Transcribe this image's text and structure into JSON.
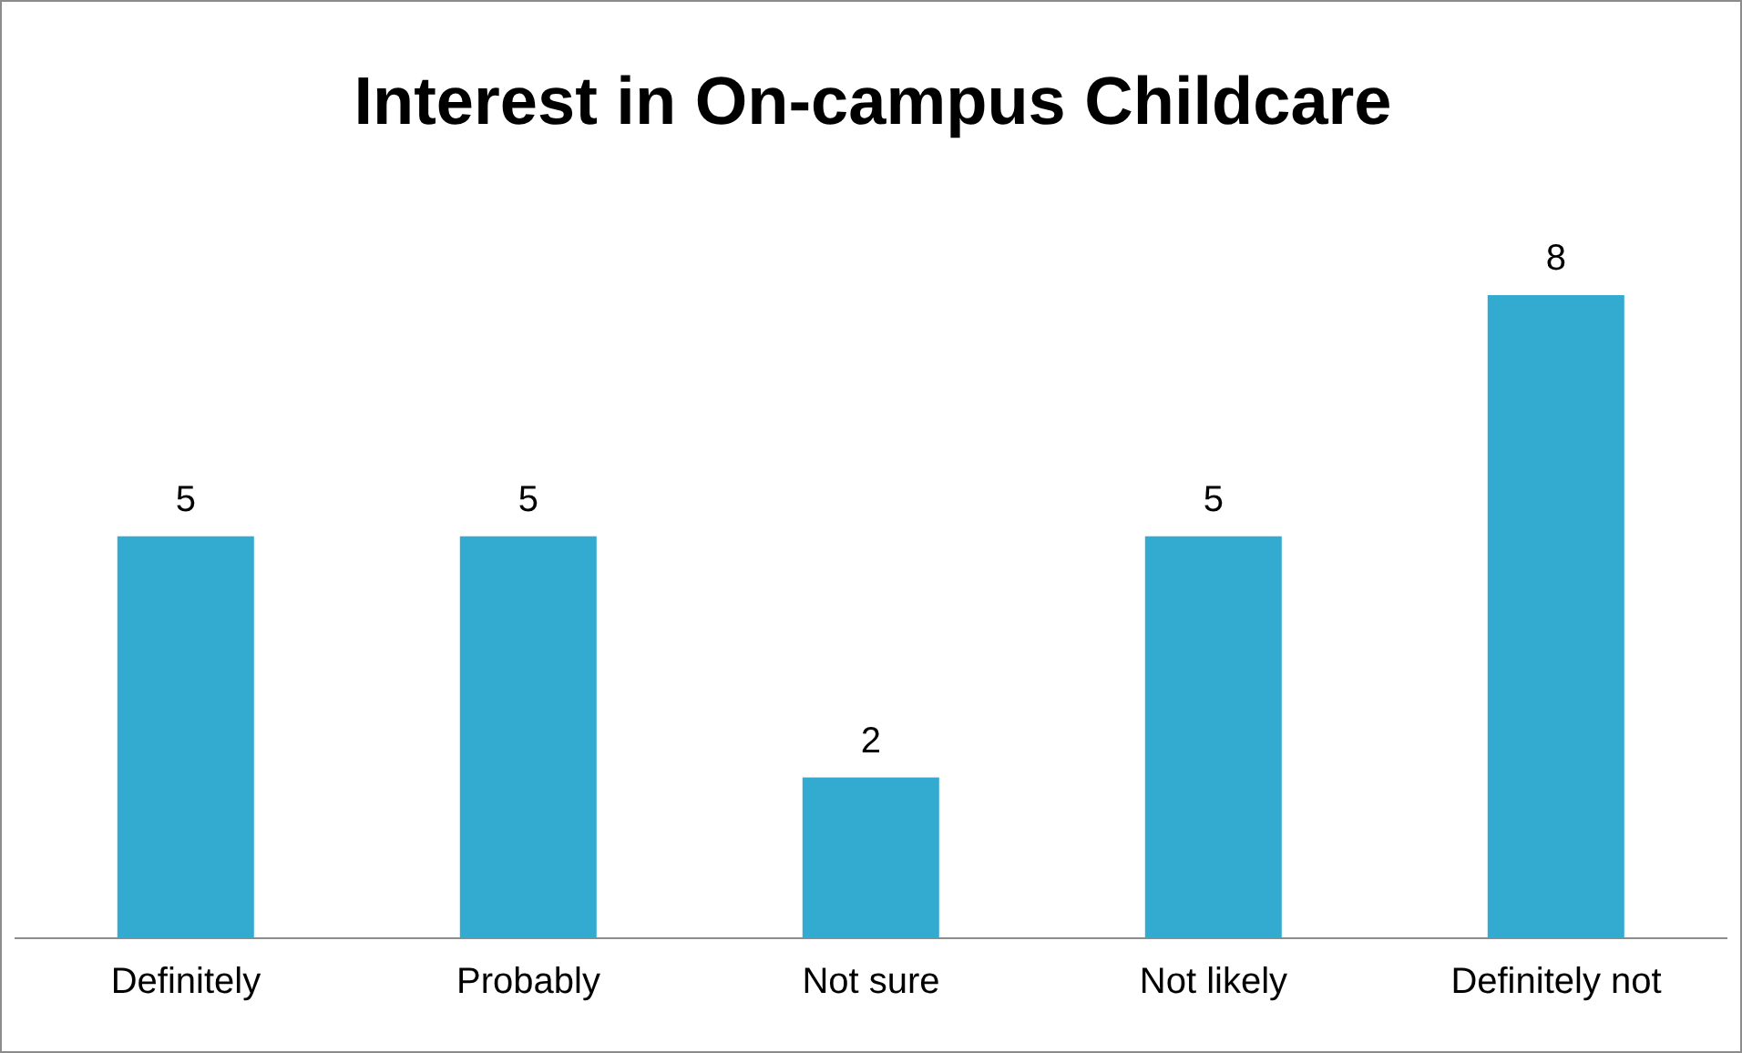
{
  "chart_data": {
    "type": "bar",
    "title": "Interest in On-campus Childcare",
    "categories": [
      "Definitely",
      "Probably",
      "Not sure",
      "Not likely",
      "Definitely not"
    ],
    "values": [
      5,
      5,
      2,
      5,
      8
    ],
    "color": "#33abd0",
    "data_labels": true,
    "grid": false,
    "legend": false
  }
}
